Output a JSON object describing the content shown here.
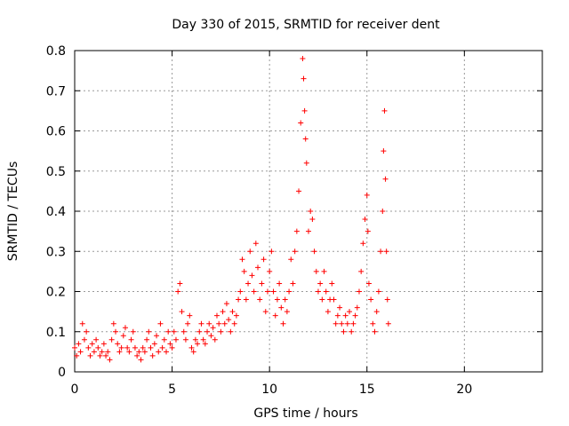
{
  "chart_data": {
    "type": "scatter",
    "title": "Day 330 of 2015, SRMTID for receiver dent",
    "xlabel": "GPS time / hours",
    "ylabel": "SRMTID / TECUs",
    "xlim": [
      0,
      24
    ],
    "ylim": [
      0,
      0.8
    ],
    "xticks": [
      0,
      5,
      10,
      15,
      20
    ],
    "yticks": [
      0,
      0.1,
      0.2,
      0.3,
      0.4,
      0.5,
      0.6,
      0.7,
      0.8
    ],
    "grid": true,
    "marker": "+",
    "color": "#ff0000",
    "series": [
      {
        "name": "SRMTID",
        "points": [
          [
            0.0,
            0.06
          ],
          [
            0.1,
            0.04
          ],
          [
            0.2,
            0.07
          ],
          [
            0.3,
            0.05
          ],
          [
            0.4,
            0.12
          ],
          [
            0.5,
            0.08
          ],
          [
            0.6,
            0.1
          ],
          [
            0.7,
            0.06
          ],
          [
            0.8,
            0.04
          ],
          [
            0.9,
            0.07
          ],
          [
            1.0,
            0.05
          ],
          [
            1.1,
            0.08
          ],
          [
            1.2,
            0.06
          ],
          [
            1.3,
            0.04
          ],
          [
            1.4,
            0.05
          ],
          [
            1.5,
            0.07
          ],
          [
            1.6,
            0.04
          ],
          [
            1.7,
            0.05
          ],
          [
            1.8,
            0.03
          ],
          [
            1.9,
            0.08
          ],
          [
            2.0,
            0.12
          ],
          [
            2.1,
            0.1
          ],
          [
            2.2,
            0.07
          ],
          [
            2.3,
            0.05
          ],
          [
            2.4,
            0.06
          ],
          [
            2.5,
            0.09
          ],
          [
            2.6,
            0.11
          ],
          [
            2.7,
            0.06
          ],
          [
            2.8,
            0.05
          ],
          [
            2.9,
            0.08
          ],
          [
            3.0,
            0.1
          ],
          [
            3.1,
            0.06
          ],
          [
            3.2,
            0.04
          ],
          [
            3.3,
            0.05
          ],
          [
            3.4,
            0.03
          ],
          [
            3.5,
            0.06
          ],
          [
            3.6,
            0.05
          ],
          [
            3.7,
            0.08
          ],
          [
            3.8,
            0.1
          ],
          [
            3.9,
            0.06
          ],
          [
            4.0,
            0.04
          ],
          [
            4.1,
            0.07
          ],
          [
            4.2,
            0.09
          ],
          [
            4.3,
            0.05
          ],
          [
            4.4,
            0.12
          ],
          [
            4.5,
            0.06
          ],
          [
            4.6,
            0.08
          ],
          [
            4.7,
            0.05
          ],
          [
            4.8,
            0.1
          ],
          [
            4.9,
            0.07
          ],
          [
            5.0,
            0.06
          ],
          [
            5.1,
            0.1
          ],
          [
            5.2,
            0.08
          ],
          [
            5.3,
            0.2
          ],
          [
            5.4,
            0.22
          ],
          [
            5.5,
            0.15
          ],
          [
            5.6,
            0.1
          ],
          [
            5.7,
            0.08
          ],
          [
            5.8,
            0.12
          ],
          [
            5.9,
            0.14
          ],
          [
            6.0,
            0.06
          ],
          [
            6.1,
            0.05
          ],
          [
            6.2,
            0.08
          ],
          [
            6.3,
            0.07
          ],
          [
            6.4,
            0.1
          ],
          [
            6.5,
            0.12
          ],
          [
            6.6,
            0.08
          ],
          [
            6.7,
            0.07
          ],
          [
            6.8,
            0.1
          ],
          [
            6.9,
            0.12
          ],
          [
            7.0,
            0.09
          ],
          [
            7.1,
            0.11
          ],
          [
            7.2,
            0.08
          ],
          [
            7.3,
            0.14
          ],
          [
            7.4,
            0.12
          ],
          [
            7.5,
            0.1
          ],
          [
            7.6,
            0.15
          ],
          [
            7.7,
            0.12
          ],
          [
            7.8,
            0.17
          ],
          [
            7.9,
            0.13
          ],
          [
            8.0,
            0.1
          ],
          [
            8.1,
            0.15
          ],
          [
            8.2,
            0.12
          ],
          [
            8.3,
            0.14
          ],
          [
            8.4,
            0.18
          ],
          [
            8.5,
            0.2
          ],
          [
            8.6,
            0.28
          ],
          [
            8.7,
            0.25
          ],
          [
            8.8,
            0.18
          ],
          [
            8.9,
            0.22
          ],
          [
            9.0,
            0.3
          ],
          [
            9.1,
            0.24
          ],
          [
            9.2,
            0.2
          ],
          [
            9.3,
            0.32
          ],
          [
            9.4,
            0.26
          ],
          [
            9.5,
            0.18
          ],
          [
            9.6,
            0.22
          ],
          [
            9.7,
            0.28
          ],
          [
            9.8,
            0.15
          ],
          [
            9.9,
            0.2
          ],
          [
            10.0,
            0.25
          ],
          [
            10.1,
            0.3
          ],
          [
            10.2,
            0.2
          ],
          [
            10.3,
            0.14
          ],
          [
            10.4,
            0.18
          ],
          [
            10.5,
            0.22
          ],
          [
            10.6,
            0.16
          ],
          [
            10.7,
            0.12
          ],
          [
            10.8,
            0.18
          ],
          [
            10.9,
            0.15
          ],
          [
            11.0,
            0.2
          ],
          [
            11.1,
            0.28
          ],
          [
            11.2,
            0.22
          ],
          [
            11.3,
            0.3
          ],
          [
            11.4,
            0.35
          ],
          [
            11.5,
            0.45
          ],
          [
            11.6,
            0.62
          ],
          [
            11.7,
            0.78
          ],
          [
            11.75,
            0.73
          ],
          [
            11.8,
            0.65
          ],
          [
            11.85,
            0.58
          ],
          [
            11.9,
            0.52
          ],
          [
            12.0,
            0.35
          ],
          [
            12.1,
            0.4
          ],
          [
            12.2,
            0.38
          ],
          [
            12.3,
            0.3
          ],
          [
            12.4,
            0.25
          ],
          [
            12.5,
            0.2
          ],
          [
            12.6,
            0.22
          ],
          [
            12.7,
            0.18
          ],
          [
            12.8,
            0.25
          ],
          [
            12.9,
            0.2
          ],
          [
            13.0,
            0.15
          ],
          [
            13.1,
            0.18
          ],
          [
            13.2,
            0.22
          ],
          [
            13.3,
            0.18
          ],
          [
            13.4,
            0.12
          ],
          [
            13.5,
            0.14
          ],
          [
            13.6,
            0.16
          ],
          [
            13.7,
            0.12
          ],
          [
            13.8,
            0.1
          ],
          [
            13.9,
            0.14
          ],
          [
            14.0,
            0.12
          ],
          [
            14.1,
            0.15
          ],
          [
            14.2,
            0.1
          ],
          [
            14.3,
            0.12
          ],
          [
            14.4,
            0.14
          ],
          [
            14.5,
            0.16
          ],
          [
            14.6,
            0.2
          ],
          [
            14.7,
            0.25
          ],
          [
            14.8,
            0.32
          ],
          [
            14.9,
            0.38
          ],
          [
            15.0,
            0.44
          ],
          [
            15.05,
            0.35
          ],
          [
            15.1,
            0.22
          ],
          [
            15.2,
            0.18
          ],
          [
            15.3,
            0.12
          ],
          [
            15.4,
            0.1
          ],
          [
            15.5,
            0.15
          ],
          [
            15.6,
            0.2
          ],
          [
            15.7,
            0.3
          ],
          [
            15.8,
            0.4
          ],
          [
            15.85,
            0.55
          ],
          [
            15.9,
            0.65
          ],
          [
            15.95,
            0.48
          ],
          [
            16.0,
            0.3
          ],
          [
            16.05,
            0.18
          ],
          [
            16.1,
            0.12
          ]
        ]
      }
    ]
  }
}
